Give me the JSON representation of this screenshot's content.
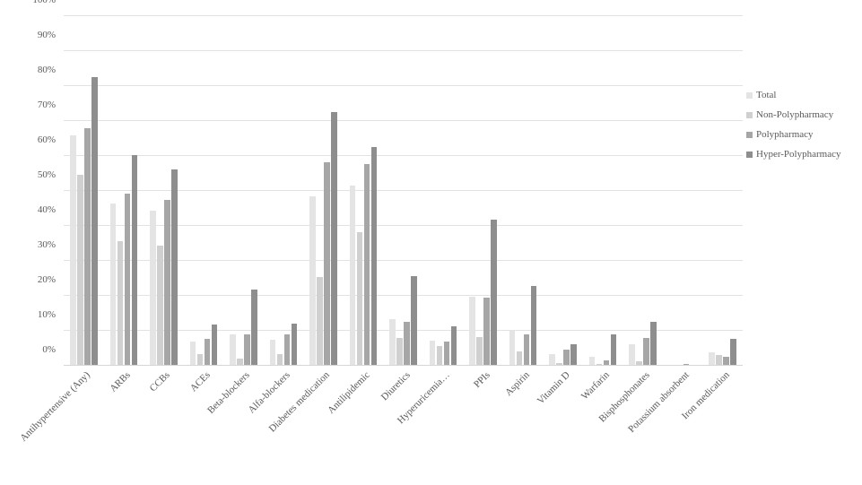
{
  "chart_data": {
    "type": "bar",
    "title": "",
    "xlabel": "",
    "ylabel": "",
    "ylim": [
      0,
      100
    ],
    "y_tick_step": 10,
    "y_tick_labels": [
      "0%",
      "10%",
      "20%",
      "30%",
      "40%",
      "50%",
      "60%",
      "70%",
      "80%",
      "90%",
      "100%"
    ],
    "grid": true,
    "legend_position": "right",
    "categories": [
      "Antihypertensive (Any)",
      "ARBs",
      "CCBs",
      "ACEs",
      "Beta-blockers",
      "Alfa-blockers",
      "Diabetes medication",
      "Antilipidemic",
      "Diuretics",
      "Hyperuricemia…",
      "PPIs",
      "Aspirin",
      "Vitamin D",
      "Warfarin",
      "Bisphosphonates",
      "Potassium absorbent",
      "Iron medication"
    ],
    "series": [
      {
        "name": "Total",
        "color": "#e4e4e4",
        "values": [
          65.7,
          46.1,
          44.0,
          6.8,
          8.7,
          7.2,
          48.3,
          51.2,
          13.2,
          7.0,
          19.5,
          9.7,
          3.2,
          2.3,
          6.0,
          0,
          3.6
        ]
      },
      {
        "name": "Non-Polypharmacy",
        "color": "#d0d0d0",
        "values": [
          54.4,
          35.4,
          34.1,
          3.2,
          1.9,
          3.0,
          25.1,
          38.0,
          7.6,
          5.4,
          8.0,
          3.9,
          0.5,
          0.2,
          1.1,
          0,
          2.9
        ]
      },
      {
        "name": "Polypharmacy",
        "color": "#a6a6a6",
        "values": [
          67.8,
          49.0,
          47.2,
          7.5,
          8.8,
          8.8,
          57.9,
          57.4,
          12.3,
          6.7,
          19.2,
          8.8,
          4.3,
          1.3,
          7.8,
          0.3,
          2.3
        ]
      },
      {
        "name": "Hyper-Polypharmacy",
        "color": "#8e8e8e",
        "values": [
          82.4,
          60.0,
          56.0,
          11.5,
          21.6,
          11.9,
          72.4,
          62.3,
          25.5,
          11.0,
          41.5,
          22.6,
          5.8,
          8.7,
          12.2,
          0,
          7.5
        ]
      }
    ]
  }
}
